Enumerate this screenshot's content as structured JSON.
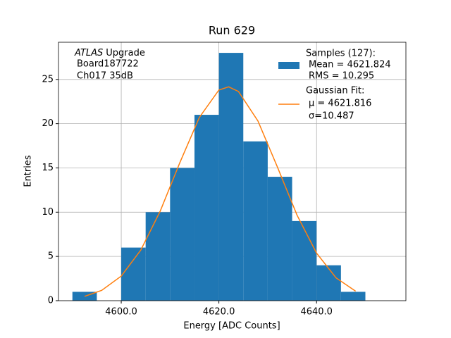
{
  "chart_data": {
    "type": "histogram",
    "title": "Run 629",
    "xlabel": "Energy [ADC Counts]",
    "ylabel": "Entries",
    "annotation": [
      "ATLAS",
      "Upgrade",
      "Board187722",
      "Ch017 35dB"
    ],
    "bins": [
      4590,
      4595,
      4600,
      4605,
      4610,
      4615,
      4620,
      4625,
      4630,
      4635,
      4640,
      4645,
      4650
    ],
    "values": [
      1,
      0,
      6,
      10,
      15,
      21,
      28,
      18,
      14,
      9,
      4,
      1
    ],
    "color": "#1f77b4",
    "name": "Samples (127):",
    "legend_lines": [
      "Mean = 4621.824",
      "RMS = 10.295"
    ],
    "fit": {
      "type": "line",
      "name": "Gaussian Fit:",
      "legend_lines": [
        "μ = 4621.816",
        "σ=10.487"
      ],
      "color": "#ff7f0e",
      "x": [
        4592.5,
        4596,
        4600,
        4604,
        4608,
        4612,
        4616,
        4620,
        4622,
        4624,
        4628,
        4632,
        4636,
        4640,
        4644,
        4648
      ],
      "values": [
        0.49,
        1.17,
        2.78,
        5.71,
        10.14,
        15.59,
        20.71,
        23.8,
        24.16,
        23.64,
        20.3,
        15.08,
        9.67,
        5.37,
        2.58,
        1.07
      ]
    },
    "xlim": [
      4587.15,
      4658.3
    ],
    "ylim": [
      0,
      29.2
    ],
    "xticks": [
      {
        "value": 4600,
        "label": "4600.0"
      },
      {
        "value": 4620,
        "label": "4620.0"
      },
      {
        "value": 4640,
        "label": "4640.0"
      }
    ],
    "yticks": [
      0,
      5,
      10,
      15,
      20,
      25
    ],
    "grid": true,
    "legend": "upper right"
  }
}
